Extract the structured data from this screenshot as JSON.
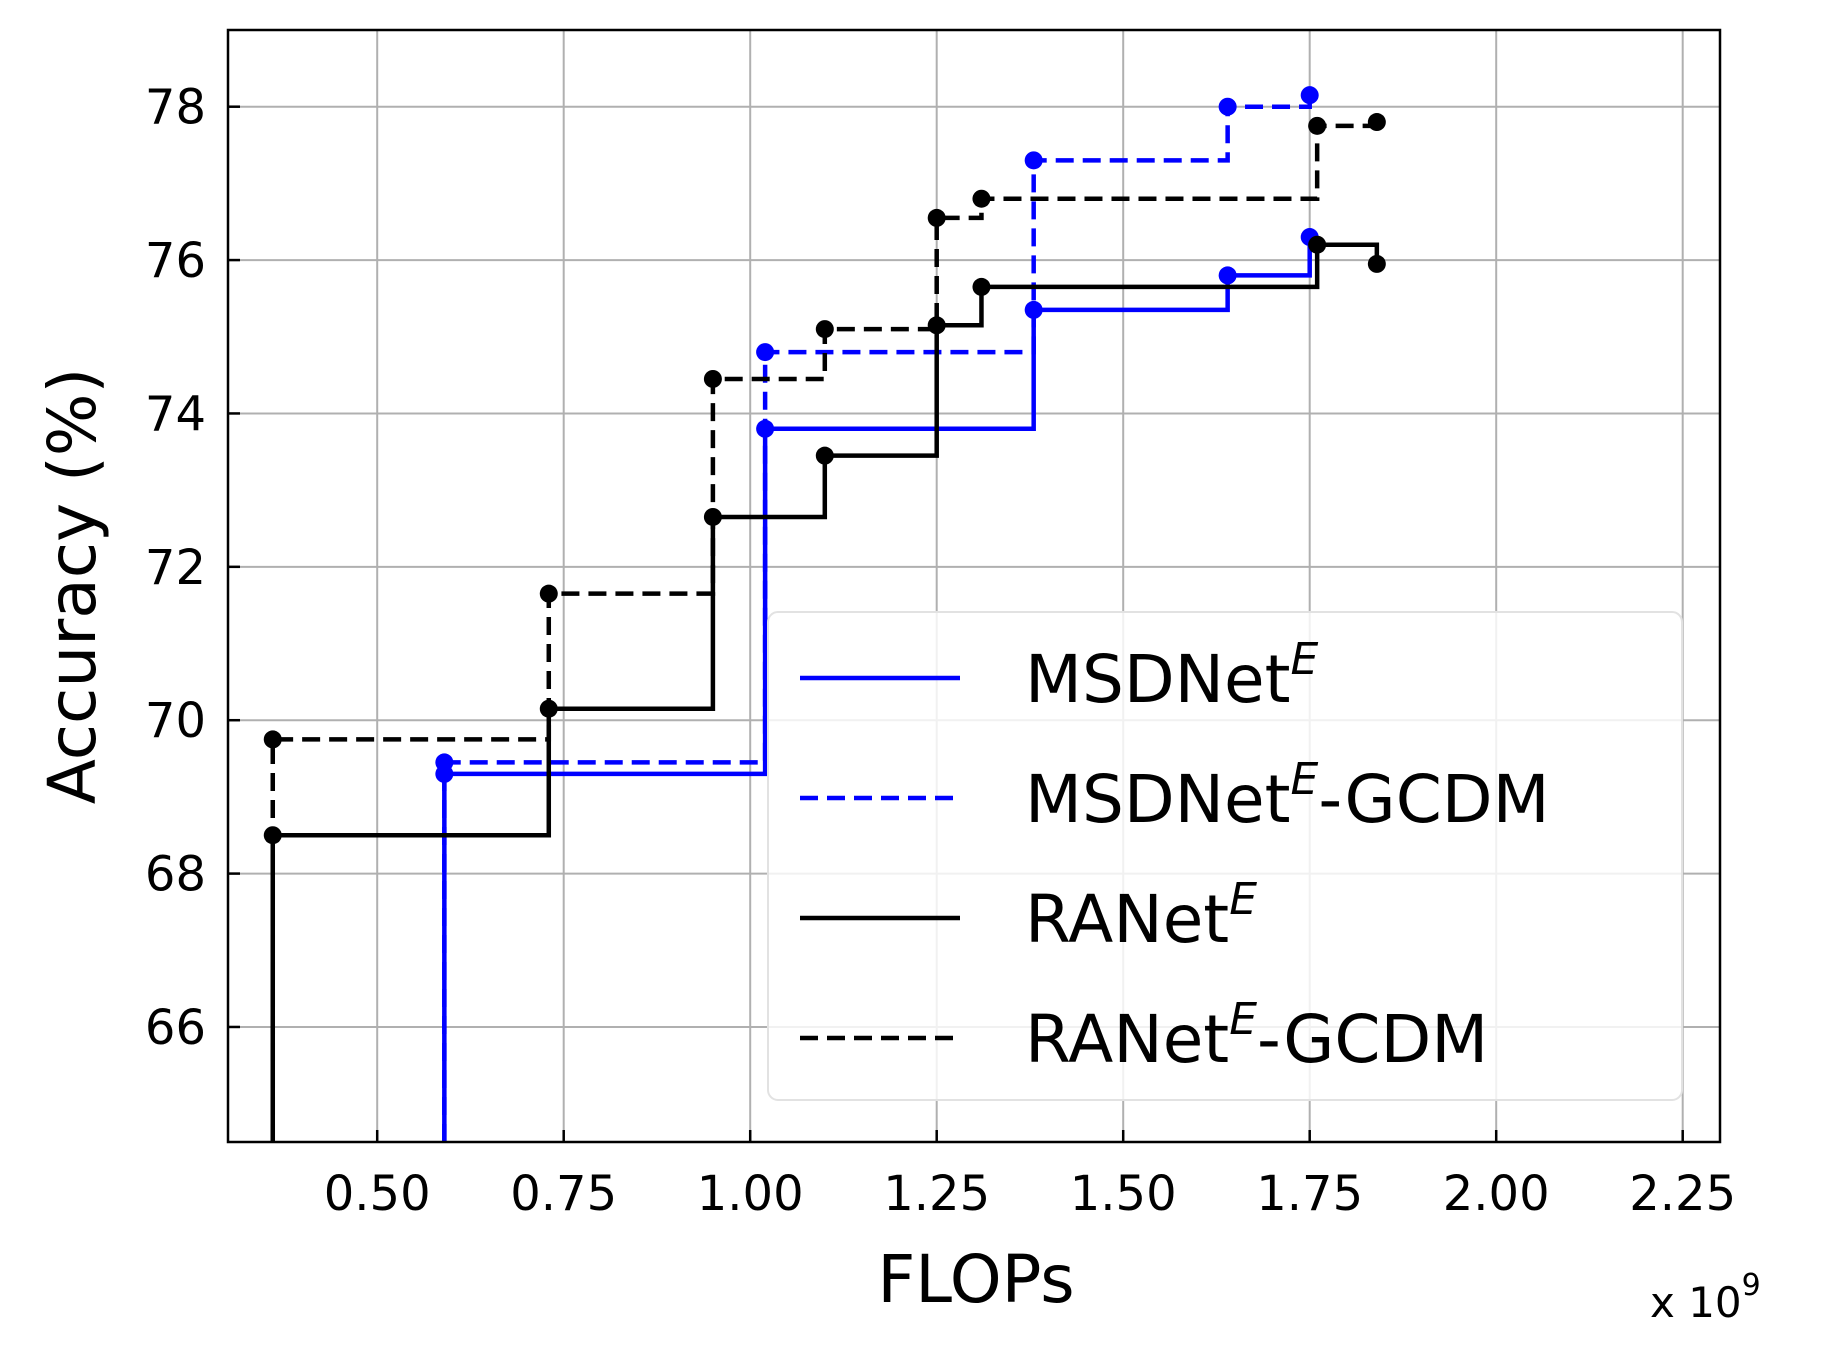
{
  "chart_data": {
    "type": "line",
    "step": "post",
    "xlabel": "FLOPs",
    "ylabel": "Accuracy (%)",
    "x_multiplier_label": "x 10",
    "x_multiplier_exponent": "9",
    "xlim": [
      0.3,
      2.3
    ],
    "ylim": [
      64.5,
      79
    ],
    "xticks": [
      0.5,
      0.75,
      1.0,
      1.25,
      1.5,
      1.75,
      2.0,
      2.25
    ],
    "xtick_labels": [
      "0.50",
      "0.75",
      "1.00",
      "1.25",
      "1.50",
      "1.75",
      "2.00",
      "2.25"
    ],
    "yticks": [
      66,
      68,
      70,
      72,
      74,
      76,
      78
    ],
    "ytick_labels": [
      "66",
      "68",
      "70",
      "72",
      "74",
      "76",
      "78"
    ],
    "grid": true,
    "legend_position": "lower-right",
    "series": [
      {
        "name": "MSDNet",
        "superscript": "E",
        "suffix": "",
        "color": "#0000ff",
        "dash": "solid",
        "x": [
          0.59,
          1.02,
          1.38,
          1.64,
          1.75
        ],
        "y": [
          69.3,
          73.8,
          75.35,
          75.8,
          76.3
        ]
      },
      {
        "name": "MSDNet",
        "superscript": "E",
        "suffix": "-GCDM",
        "color": "#0000ff",
        "dash": "dashed",
        "x": [
          0.59,
          1.02,
          1.38,
          1.64,
          1.75
        ],
        "y": [
          69.45,
          74.8,
          77.3,
          78.0,
          78.15
        ]
      },
      {
        "name": "RANet",
        "superscript": "E",
        "suffix": "",
        "color": "#000000",
        "dash": "solid",
        "x": [
          0.36,
          0.73,
          0.95,
          1.1,
          1.25,
          1.31,
          1.76,
          1.84
        ],
        "y": [
          68.5,
          70.15,
          72.65,
          73.45,
          75.15,
          75.65,
          76.2,
          75.95
        ]
      },
      {
        "name": "RANet",
        "superscript": "E",
        "suffix": "-GCDM",
        "color": "#000000",
        "dash": "dashed",
        "x": [
          0.36,
          0.73,
          0.95,
          1.1,
          1.25,
          1.31,
          1.76,
          1.84
        ],
        "y": [
          69.75,
          71.65,
          74.45,
          75.1,
          76.55,
          76.8,
          77.75,
          77.8
        ]
      }
    ]
  }
}
